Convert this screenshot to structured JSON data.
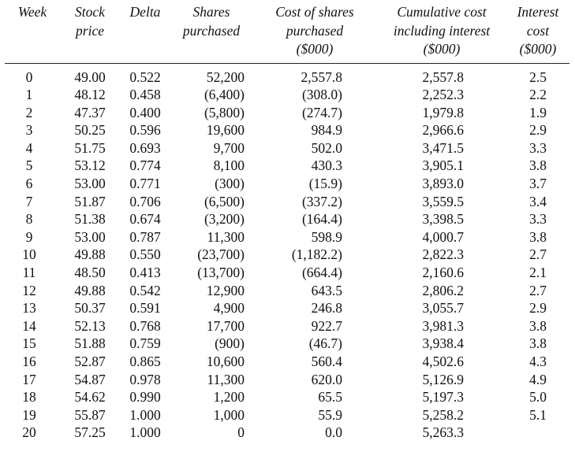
{
  "table": {
    "headers": [
      [
        "Week"
      ],
      [
        "Stock",
        "price"
      ],
      [
        "Delta"
      ],
      [
        "Shares",
        "purchased"
      ],
      [
        "Cost of shares",
        "purchased",
        "($000)"
      ],
      [
        "Cumulative cost",
        "including interest",
        "($000)"
      ],
      [
        "Interest",
        "cost",
        "($000)"
      ]
    ],
    "rows": [
      [
        "0",
        "49.00",
        "0.522",
        "52,200",
        "2,557.8",
        "2,557.8",
        "2.5"
      ],
      [
        "1",
        "48.12",
        "0.458",
        "(6,400)",
        "(308.0)",
        "2,252.3",
        "2.2"
      ],
      [
        "2",
        "47.37",
        "0.400",
        "(5,800)",
        "(274.7)",
        "1,979.8",
        "1.9"
      ],
      [
        "3",
        "50.25",
        "0.596",
        "19,600",
        "984.9",
        "2,966.6",
        "2.9"
      ],
      [
        "4",
        "51.75",
        "0.693",
        "9,700",
        "502.0",
        "3,471.5",
        "3.3"
      ],
      [
        "5",
        "53.12",
        "0.774",
        "8,100",
        "430.3",
        "3,905.1",
        "3.8"
      ],
      [
        "6",
        "53.00",
        "0.771",
        "(300)",
        "(15.9)",
        "3,893.0",
        "3.7"
      ],
      [
        "7",
        "51.87",
        "0.706",
        "(6,500)",
        "(337.2)",
        "3,559.5",
        "3.4"
      ],
      [
        "8",
        "51.38",
        "0.674",
        "(3,200)",
        "(164.4)",
        "3,398.5",
        "3.3"
      ],
      [
        "9",
        "53.00",
        "0.787",
        "11,300",
        "598.9",
        "4,000.7",
        "3.8"
      ],
      [
        "10",
        "49.88",
        "0.550",
        "(23,700)",
        "(1,182.2)",
        "2,822.3",
        "2.7"
      ],
      [
        "11",
        "48.50",
        "0.413",
        "(13,700)",
        "(664.4)",
        "2,160.6",
        "2.1"
      ],
      [
        "12",
        "49.88",
        "0.542",
        "12,900",
        "643.5",
        "2,806.2",
        "2.7"
      ],
      [
        "13",
        "50.37",
        "0.591",
        "4,900",
        "246.8",
        "3,055.7",
        "2.9"
      ],
      [
        "14",
        "52.13",
        "0.768",
        "17,700",
        "922.7",
        "3,981.3",
        "3.8"
      ],
      [
        "15",
        "51.88",
        "0.759",
        "(900)",
        "(46.7)",
        "3,938.4",
        "3.8"
      ],
      [
        "16",
        "52.87",
        "0.865",
        "10,600",
        "560.4",
        "4,502.6",
        "4.3"
      ],
      [
        "17",
        "54.87",
        "0.978",
        "11,300",
        "620.0",
        "5,126.9",
        "4.9"
      ],
      [
        "18",
        "54.62",
        "0.990",
        "1,200",
        "65.5",
        "5,197.3",
        "5.0"
      ],
      [
        "19",
        "55.87",
        "1.000",
        "1,000",
        "55.9",
        "5,258.2",
        "5.1"
      ],
      [
        "20",
        "57.25",
        "1.000",
        "0",
        "0.0",
        "5,263.3",
        ""
      ]
    ]
  }
}
